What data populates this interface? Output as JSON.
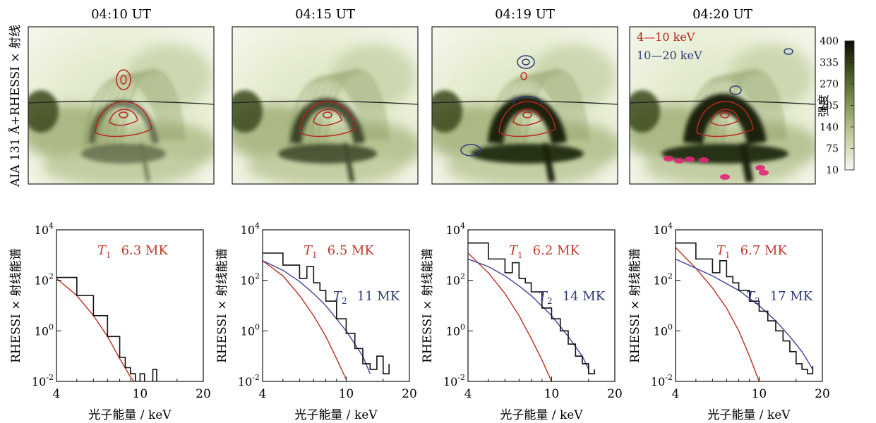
{
  "colors": {
    "t1_curve": "#c0392b",
    "t2_curve": "#4a4f9e",
    "total_curve": "#111111",
    "contour_low": "#b8261e",
    "contour_high": "#2e3a7a",
    "footpoint": "#e0287a",
    "map_bg_light": "#f3f6ea",
    "map_bg_mid": "#9fb07a",
    "map_dark": "#1d2410"
  },
  "images": {
    "panels": [
      {
        "time": "04:10 UT",
        "has_t2_contour": false,
        "has_footpoints": false,
        "legend": null
      },
      {
        "time": "04:15 UT",
        "has_t2_contour": false,
        "has_footpoints": false,
        "legend": null
      },
      {
        "time": "04:19 UT",
        "has_t2_contour": true,
        "has_footpoints": false,
        "legend": null
      },
      {
        "time": "04:20 UT",
        "has_t2_contour": true,
        "has_footpoints": true,
        "legend": {
          "low": "4—10 keV",
          "high": "10—20 keV"
        }
      }
    ],
    "ylabel": "AIA 131 Å+RHESSI × 射线",
    "colorbar": {
      "label": "强度",
      "ticks": [
        "400",
        "335",
        "270",
        "205",
        "140",
        "75",
        "10"
      ]
    }
  },
  "chart_data": [
    {
      "type": "line",
      "title": "",
      "xlabel": "光子能量 / keV",
      "ylabel": "RHESSI × 射线能谱",
      "x_scale": "log",
      "y_scale": "log",
      "xlim": [
        4,
        20
      ],
      "ylim": [
        0.01,
        10000
      ],
      "x_ticks": [
        "4",
        "10",
        "20"
      ],
      "y_ticks": [
        "10^4",
        "10^2",
        "10^0",
        "10^-2"
      ],
      "annotations": [
        {
          "symbol": "T",
          "sub": "1",
          "value": "6.3 MK",
          "color": "#c0392b"
        }
      ],
      "series": [
        {
          "name": "T1",
          "color": "#c0392b",
          "x": [
            4,
            5,
            6,
            7,
            8,
            9,
            10
          ],
          "y": [
            120,
            25,
            4,
            0.6,
            0.08,
            0.015,
            0.005
          ]
        },
        {
          "name": "total",
          "color": "#111111",
          "step": true,
          "x": [
            4,
            5,
            6,
            7,
            8,
            8.5,
            9,
            9.5,
            10,
            10.5,
            11,
            11.5,
            12
          ],
          "y": [
            130,
            25,
            4,
            0.6,
            0.09,
            0.035,
            0.02,
            0.01,
            0.02,
            0.005,
            0.005,
            0.03,
            0.01
          ]
        }
      ]
    },
    {
      "type": "line",
      "title": "",
      "xlabel": "光子能量 / keV",
      "ylabel": "RHESSI × 射线能谱",
      "x_scale": "log",
      "y_scale": "log",
      "xlim": [
        4,
        20
      ],
      "ylim": [
        0.01,
        10000
      ],
      "x_ticks": [
        "4",
        "10",
        "20"
      ],
      "y_ticks": [
        "10^4",
        "10^2",
        "10^0",
        "10^-2"
      ],
      "annotations": [
        {
          "symbol": "T",
          "sub": "1",
          "value": "6.5 MK",
          "color": "#c0392b"
        },
        {
          "symbol": "T",
          "sub": "2",
          "value": "11 MK",
          "color": "#2e3a7a"
        }
      ],
      "series": [
        {
          "name": "T1",
          "color": "#c0392b",
          "x": [
            4,
            5,
            6,
            7,
            8,
            9,
            10
          ],
          "y": [
            600,
            150,
            25,
            4,
            0.6,
            0.08,
            0.012
          ]
        },
        {
          "name": "T2",
          "color": "#4a4f9e",
          "x": [
            4,
            5,
            6,
            7,
            8,
            10,
            12,
            13
          ],
          "y": [
            600,
            250,
            90,
            30,
            10,
            1,
            0.1,
            0.02
          ]
        },
        {
          "name": "total",
          "color": "#111111",
          "step": true,
          "x": [
            4,
            5,
            6,
            6.5,
            7,
            7.5,
            8,
            9,
            10,
            11,
            12,
            13,
            14,
            15,
            16
          ],
          "y": [
            1200,
            400,
            120,
            350,
            80,
            40,
            15,
            3,
            0.8,
            0.2,
            0.05,
            0.03,
            0.1,
            0.02,
            0.05
          ]
        }
      ]
    },
    {
      "type": "line",
      "title": "",
      "xlabel": "光子能量 / keV",
      "ylabel": "RHESSI × 射线能谱",
      "x_scale": "log",
      "y_scale": "log",
      "xlim": [
        4,
        20
      ],
      "ylim": [
        0.01,
        10000
      ],
      "x_ticks": [
        "4",
        "10",
        "20"
      ],
      "y_ticks": [
        "10^4",
        "10^2",
        "10^0",
        "10^-2"
      ],
      "annotations": [
        {
          "symbol": "T",
          "sub": "1",
          "value": "6.2 MK",
          "color": "#c0392b"
        },
        {
          "symbol": "T",
          "sub": "2",
          "value": "14 MK",
          "color": "#2e3a7a"
        }
      ],
      "series": [
        {
          "name": "T1",
          "color": "#c0392b",
          "x": [
            4,
            5,
            6,
            7,
            8,
            9,
            10
          ],
          "y": [
            1200,
            200,
            30,
            4,
            0.5,
            0.07,
            0.01
          ]
        },
        {
          "name": "T2",
          "color": "#4a4f9e",
          "x": [
            4,
            5,
            6,
            7,
            8,
            10,
            12,
            14,
            15
          ],
          "y": [
            700,
            350,
            150,
            60,
            25,
            4,
            0.6,
            0.1,
            0.03
          ]
        },
        {
          "name": "total",
          "color": "#111111",
          "step": true,
          "x": [
            4,
            5,
            6,
            6.5,
            7,
            7.5,
            8,
            9,
            10,
            11,
            12,
            13,
            14,
            15,
            16
          ],
          "y": [
            3000,
            700,
            200,
            500,
            120,
            80,
            35,
            8,
            3,
            1,
            0.3,
            0.1,
            0.05,
            0.02,
            0.03
          ]
        }
      ]
    },
    {
      "type": "line",
      "title": "",
      "xlabel": "光子能量 / keV",
      "ylabel": "RHESSI × 射线能谱",
      "x_scale": "log",
      "y_scale": "log",
      "xlim": [
        4,
        20
      ],
      "ylim": [
        0.01,
        10000
      ],
      "x_ticks": [
        "4",
        "10",
        "20"
      ],
      "y_ticks": [
        "10^4",
        "10^2",
        "10^0",
        "10^-2"
      ],
      "annotations": [
        {
          "symbol": "T",
          "sub": "1",
          "value": "6.7 MK",
          "color": "#c0392b"
        },
        {
          "symbol": "T",
          "sub": "2",
          "value": "17 MK",
          "color": "#2e3a7a"
        }
      ],
      "series": [
        {
          "name": "T1",
          "color": "#c0392b",
          "x": [
            4,
            5,
            6,
            7,
            8,
            9,
            10
          ],
          "y": [
            2000,
            300,
            50,
            8,
            1,
            0.1,
            0.01
          ]
        },
        {
          "name": "T2",
          "color": "#4a4f9e",
          "x": [
            4,
            5,
            6,
            8,
            10,
            12,
            14,
            16,
            18
          ],
          "y": [
            700,
            300,
            150,
            40,
            10,
            2.5,
            0.6,
            0.15,
            0.03
          ]
        },
        {
          "name": "total",
          "color": "#111111",
          "step": true,
          "x": [
            4,
            5,
            6,
            6.5,
            7,
            7.5,
            8,
            9,
            10,
            11,
            12,
            13,
            14,
            15,
            16,
            17,
            18
          ],
          "y": [
            3000,
            700,
            200,
            600,
            140,
            80,
            40,
            15,
            6,
            2.5,
            1,
            0.4,
            0.15,
            0.05,
            0.03,
            0.02,
            0.04
          ]
        }
      ]
    }
  ]
}
